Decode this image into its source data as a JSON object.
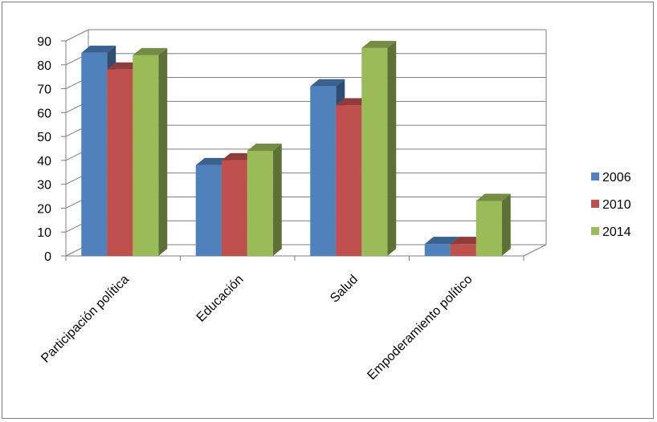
{
  "chart_data": {
    "type": "bar",
    "categories": [
      "Participación política",
      "Educación",
      "Salud",
      "Empoderamiento político"
    ],
    "series": [
      {
        "name": "2006",
        "values": [
          85,
          38,
          71,
          5
        ],
        "color": "#4f81bd"
      },
      {
        "name": "2010",
        "values": [
          78,
          40,
          63,
          5
        ],
        "color": "#c0504d"
      },
      {
        "name": "2014",
        "values": [
          84,
          44,
          87,
          23
        ],
        "color": "#9bbb59"
      }
    ],
    "ylim": [
      0,
      90
    ],
    "yticks": [
      0,
      10,
      20,
      30,
      40,
      50,
      60,
      70,
      80,
      90
    ],
    "grid": true,
    "legend_position": "right",
    "style": "3d-clustered-column"
  }
}
